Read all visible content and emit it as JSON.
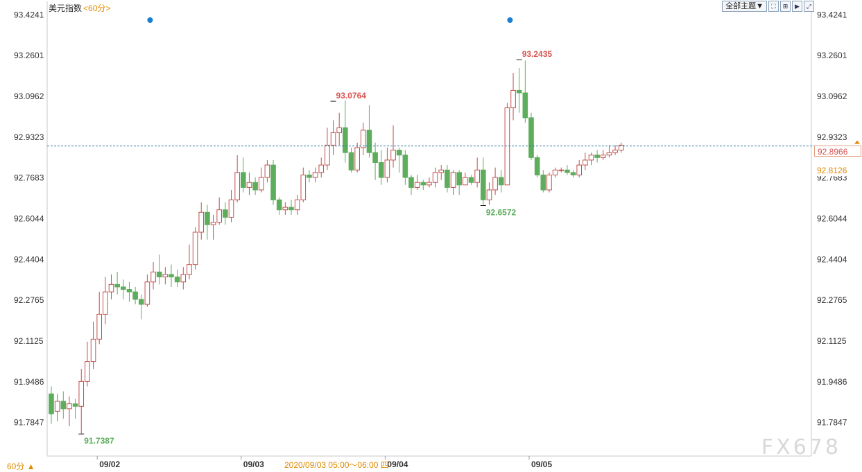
{
  "header": {
    "instrument": "美元指数",
    "period_tag": "<60分>",
    "theme_button": "全部主题▼",
    "tool_icons": [
      "fullscreen-icon",
      "grid-icon",
      "play-icon",
      "expand-icon"
    ]
  },
  "footer": {
    "period_selector": "60分 ▲",
    "crosshair_time": "2020/09/03 05:00～06:00 四",
    "watermark": "FX678"
  },
  "price_boxes": {
    "current": "92.8966",
    "cross": "92.8126"
  },
  "colors": {
    "up": "#c0504d",
    "down": "#5cad5c",
    "dashed_line": "#2e7fa8",
    "event_marker": "#1a7fd0",
    "accent": "#e08a00"
  },
  "chart_data": {
    "type": "candlestick",
    "ylim": [
      91.65,
      93.45
    ],
    "y_ticks": [
      "93.4241",
      "93.2601",
      "93.0962",
      "92.9323",
      "92.7683",
      "92.6044",
      "92.4404",
      "92.2765",
      "92.1125",
      "91.9486",
      "91.7847"
    ],
    "y_tick_values": [
      93.4241,
      93.2601,
      93.0962,
      92.9323,
      92.7683,
      92.6044,
      92.4404,
      92.2765,
      92.1125,
      91.9486,
      91.7847
    ],
    "x_labels": [
      {
        "label": "09/02",
        "index": 8
      },
      {
        "label": "09/03",
        "index": 32
      },
      {
        "label": "09/04",
        "index": 56
      },
      {
        "label": "09/05",
        "index": 80
      }
    ],
    "current_price": 92.8966,
    "annotations": [
      {
        "text": "91.7387",
        "index": 5,
        "value": 91.7387,
        "kind": "low"
      },
      {
        "text": "93.0764",
        "index": 47,
        "value": 93.0764,
        "kind": "high"
      },
      {
        "text": "92.6572",
        "index": 72,
        "value": 92.6572,
        "kind": "low"
      },
      {
        "text": "93.2435",
        "index": 78,
        "value": 93.2435,
        "kind": "high"
      }
    ],
    "event_markers": [
      16,
      76
    ],
    "candles": [
      [
        91.9,
        91.82,
        91.93,
        91.78
      ],
      [
        91.83,
        91.87,
        91.9,
        91.79
      ],
      [
        91.87,
        91.84,
        91.91,
        91.8
      ],
      [
        91.84,
        91.86,
        91.89,
        91.77
      ],
      [
        91.86,
        91.85,
        91.88,
        91.8
      ],
      [
        91.85,
        91.95,
        92.0,
        91.74
      ],
      [
        91.95,
        92.03,
        92.11,
        91.93
      ],
      [
        92.03,
        92.12,
        92.19,
        92.0
      ],
      [
        92.12,
        92.22,
        92.31,
        92.1
      ],
      [
        92.22,
        92.31,
        92.37,
        92.18
      ],
      [
        92.31,
        92.34,
        92.38,
        92.28
      ],
      [
        92.34,
        92.33,
        92.39,
        92.3
      ],
      [
        92.33,
        92.32,
        92.36,
        92.28
      ],
      [
        92.32,
        92.31,
        92.35,
        92.27
      ],
      [
        92.31,
        92.28,
        92.33,
        92.26
      ],
      [
        92.28,
        92.26,
        92.3,
        92.2
      ],
      [
        92.26,
        92.35,
        92.38,
        92.25
      ],
      [
        92.35,
        92.39,
        92.43,
        92.32
      ],
      [
        92.39,
        92.37,
        92.46,
        92.34
      ],
      [
        92.37,
        92.38,
        92.41,
        92.34
      ],
      [
        92.38,
        92.37,
        92.42,
        92.33
      ],
      [
        92.37,
        92.35,
        92.4,
        92.33
      ],
      [
        92.35,
        92.38,
        92.41,
        92.32
      ],
      [
        92.38,
        92.42,
        92.5,
        92.36
      ],
      [
        92.42,
        92.55,
        92.57,
        92.4
      ],
      [
        92.55,
        92.63,
        92.67,
        92.52
      ],
      [
        92.63,
        92.58,
        92.66,
        92.52
      ],
      [
        92.58,
        92.59,
        92.62,
        92.52
      ],
      [
        92.59,
        92.64,
        92.69,
        92.58
      ],
      [
        92.64,
        92.61,
        92.67,
        92.58
      ],
      [
        92.61,
        92.68,
        92.72,
        92.59
      ],
      [
        92.68,
        92.79,
        92.86,
        92.67
      ],
      [
        92.79,
        92.73,
        92.85,
        92.71
      ],
      [
        92.73,
        92.75,
        92.79,
        92.7
      ],
      [
        92.75,
        92.72,
        92.77,
        92.7
      ],
      [
        92.72,
        92.77,
        92.81,
        92.71
      ],
      [
        92.77,
        92.82,
        92.84,
        92.75
      ],
      [
        92.82,
        92.68,
        92.84,
        92.66
      ],
      [
        92.68,
        92.64,
        92.69,
        92.62
      ],
      [
        92.64,
        92.65,
        92.67,
        92.62
      ],
      [
        92.65,
        92.64,
        92.68,
        92.62
      ],
      [
        92.64,
        92.68,
        92.7,
        92.62
      ],
      [
        92.68,
        92.78,
        92.81,
        92.67
      ],
      [
        92.78,
        92.77,
        92.8,
        92.75
      ],
      [
        92.77,
        92.79,
        92.81,
        92.75
      ],
      [
        92.79,
        92.82,
        92.85,
        92.77
      ],
      [
        92.82,
        92.9,
        92.97,
        92.8
      ],
      [
        92.9,
        92.95,
        93.0,
        92.86
      ],
      [
        92.95,
        92.97,
        93.03,
        92.9
      ],
      [
        92.97,
        92.87,
        93.08,
        92.83
      ],
      [
        92.87,
        92.8,
        92.89,
        92.79
      ],
      [
        92.8,
        92.89,
        92.91,
        92.79
      ],
      [
        92.89,
        92.96,
        92.99,
        92.86
      ],
      [
        92.96,
        92.87,
        93.06,
        92.85
      ],
      [
        92.87,
        92.83,
        92.91,
        92.76
      ],
      [
        92.83,
        92.77,
        92.88,
        92.74
      ],
      [
        92.77,
        92.84,
        92.89,
        92.75
      ],
      [
        92.84,
        92.88,
        92.98,
        92.81
      ],
      [
        92.88,
        92.86,
        92.89,
        92.79
      ],
      [
        92.86,
        92.77,
        92.88,
        92.74
      ],
      [
        92.77,
        92.73,
        92.78,
        92.7
      ],
      [
        92.73,
        92.75,
        92.78,
        92.72
      ],
      [
        92.75,
        92.74,
        92.76,
        92.72
      ],
      [
        92.74,
        92.75,
        92.77,
        92.73
      ],
      [
        92.75,
        92.79,
        92.81,
        92.73
      ],
      [
        92.79,
        92.8,
        92.82,
        92.76
      ],
      [
        92.8,
        92.73,
        92.82,
        92.71
      ],
      [
        92.73,
        92.79,
        92.8,
        92.7
      ],
      [
        92.79,
        92.74,
        92.8,
        92.7
      ],
      [
        92.74,
        92.77,
        92.79,
        92.74
      ],
      [
        92.77,
        92.75,
        92.78,
        92.74
      ],
      [
        92.75,
        92.8,
        92.85,
        92.73
      ],
      [
        92.8,
        92.68,
        92.85,
        92.66
      ],
      [
        92.68,
        92.72,
        92.75,
        92.66
      ],
      [
        92.72,
        92.77,
        92.81,
        92.7
      ],
      [
        92.77,
        92.74,
        92.8,
        92.71
      ],
      [
        92.74,
        93.05,
        93.07,
        92.74
      ],
      [
        93.05,
        93.12,
        93.19,
        93.0
      ],
      [
        93.12,
        93.11,
        93.21,
        93.03
      ],
      [
        93.11,
        93.01,
        93.24,
        92.99
      ],
      [
        93.01,
        92.85,
        93.03,
        92.84
      ],
      [
        92.85,
        92.78,
        92.86,
        92.77
      ],
      [
        92.78,
        92.72,
        92.8,
        92.71
      ],
      [
        92.72,
        92.78,
        92.79,
        92.71
      ],
      [
        92.78,
        92.8,
        92.81,
        92.77
      ],
      [
        92.8,
        92.8,
        92.81,
        92.79
      ],
      [
        92.8,
        92.79,
        92.82,
        92.78
      ],
      [
        92.79,
        92.78,
        92.8,
        92.77
      ],
      [
        92.78,
        92.82,
        92.84,
        92.77
      ],
      [
        92.82,
        92.84,
        92.87,
        92.8
      ],
      [
        92.84,
        92.86,
        92.87,
        92.82
      ],
      [
        92.86,
        92.85,
        92.88,
        92.83
      ],
      [
        92.85,
        92.86,
        92.88,
        92.84
      ],
      [
        92.86,
        92.87,
        92.9,
        92.85
      ],
      [
        92.87,
        92.88,
        92.9,
        92.86
      ],
      [
        92.88,
        92.9,
        92.91,
        92.87
      ]
    ]
  }
}
